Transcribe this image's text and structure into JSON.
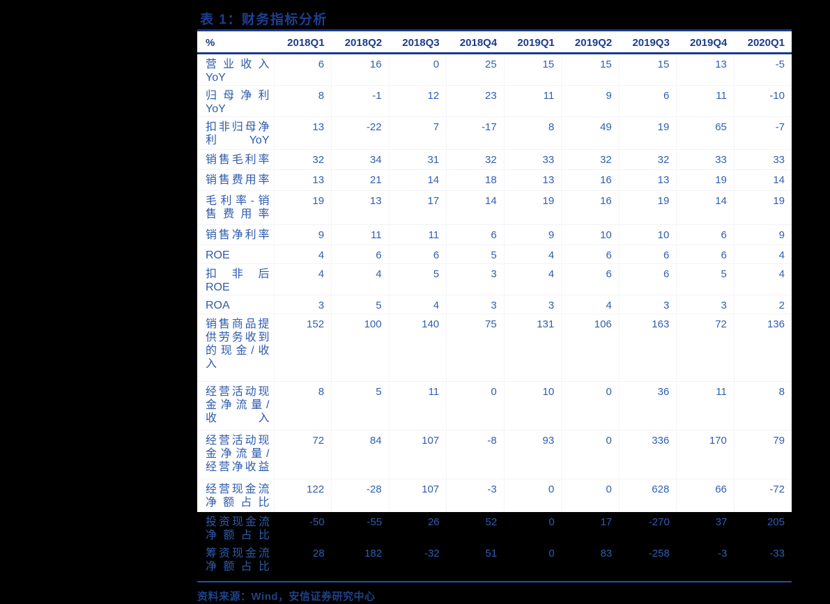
{
  "title": "表 1：财务指标分析",
  "source": "资料来源：Wind，安信证券研究中心",
  "colors": {
    "page_bg": "#000000",
    "panel_bg": "#ffffff",
    "title_text": "#1d3f93",
    "header_text": "#1c3c8c",
    "value_text": "#2e5eb2",
    "header_rule": "#1a3a8a",
    "footer_rule": "#1d50c0"
  },
  "table": {
    "header": [
      "%",
      "2018Q1",
      "2018Q2",
      "2018Q3",
      "2018Q4",
      "2019Q1",
      "2019Q2",
      "2019Q3",
      "2019Q4",
      "2020Q1"
    ],
    "rows": [
      {
        "label": "营业收入\nYoY",
        "values": [
          6,
          16,
          0,
          25,
          15,
          15,
          15,
          13,
          -5
        ]
      },
      {
        "label": "归母净利\nYoY",
        "values": [
          8,
          -1,
          12,
          23,
          11,
          9,
          6,
          11,
          -10
        ]
      },
      {
        "label": "扣非归母净\n利 YoY",
        "values": [
          13,
          -22,
          7,
          -17,
          8,
          49,
          19,
          65,
          -7
        ]
      },
      {
        "label": "销售毛利率",
        "values": [
          32,
          34,
          31,
          32,
          33,
          32,
          32,
          33,
          33
        ]
      },
      {
        "label": "销售费用率",
        "values": [
          13,
          21,
          14,
          18,
          13,
          16,
          13,
          19,
          14
        ]
      },
      {
        "label": "毛利率-销\n售费用率",
        "values": [
          19,
          13,
          17,
          14,
          19,
          16,
          19,
          14,
          19
        ]
      },
      {
        "label": "销售净利率",
        "values": [
          9,
          11,
          11,
          6,
          9,
          10,
          10,
          6,
          9
        ]
      },
      {
        "label": "ROE",
        "values": [
          4,
          6,
          6,
          5,
          4,
          6,
          6,
          6,
          4
        ]
      },
      {
        "label": "扣非后\nROE",
        "values": [
          4,
          4,
          5,
          3,
          4,
          6,
          6,
          5,
          4
        ]
      },
      {
        "label": "ROA",
        "values": [
          3,
          5,
          4,
          3,
          3,
          4,
          3,
          3,
          2
        ]
      },
      {
        "label": "销售商品提\n供劳务收到\n的现金/收\n入",
        "values": [
          152,
          100,
          140,
          75,
          131,
          106,
          163,
          72,
          136
        ]
      },
      {
        "label": "经营活动现\n金净流量/\n收入",
        "values": [
          8,
          5,
          11,
          0,
          10,
          0,
          36,
          11,
          8
        ]
      },
      {
        "label": "经营活动现\n金净流量/\n经营净收益",
        "values": [
          72,
          84,
          107,
          -8,
          93,
          0,
          336,
          170,
          79
        ]
      },
      {
        "label": "经营现金流\n净额占比",
        "values": [
          122,
          -28,
          107,
          -3,
          0,
          0,
          628,
          66,
          -72
        ]
      },
      {
        "label": "投资现金流\n净额占比",
        "values": [
          -50,
          -55,
          26,
          52,
          0,
          17,
          -270,
          37,
          205
        ]
      },
      {
        "label": "筹资现金流\n净额占比",
        "values": [
          28,
          182,
          -32,
          51,
          0,
          83,
          -258,
          -3,
          -33
        ]
      }
    ]
  }
}
